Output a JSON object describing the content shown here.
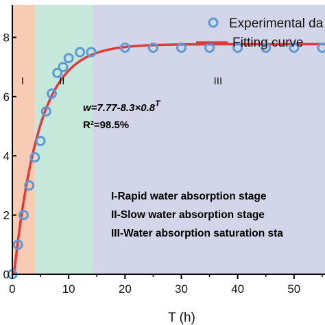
{
  "chart_data": {
    "type": "scatter",
    "xlabel": "T (h)",
    "ylabel": "",
    "xlim": [
      0,
      55.5
    ],
    "ylim": [
      0,
      9.1
    ],
    "x_ticks": [
      0,
      10,
      20,
      30,
      40,
      50
    ],
    "y_tick_labels": [
      {
        "value": 0,
        "label": "0"
      },
      {
        "value": 2,
        "label": "2"
      },
      {
        "value": 4,
        "label": "4"
      },
      {
        "value": 6,
        "label": "6"
      },
      {
        "value": 8,
        "label": "8"
      }
    ],
    "regions": [
      {
        "label": "I",
        "from": 0,
        "to": 4,
        "color": "#f8cbb4"
      },
      {
        "label": "II",
        "from": 4,
        "to": 14.3,
        "color": "#c5e8da"
      },
      {
        "label": "III",
        "from": 14.3,
        "to": 55.5,
        "color": "#d2d6e8"
      }
    ],
    "series": [
      {
        "name": "Experimental da",
        "kind": "scatter",
        "color": "#5b9bd5",
        "x": [
          0,
          1,
          2,
          3,
          4,
          5,
          6,
          7,
          8,
          9,
          10,
          12,
          14,
          20,
          25,
          30,
          35,
          40,
          45,
          50,
          55
        ],
        "y": [
          0.0,
          1.0,
          2.0,
          3.0,
          3.95,
          4.5,
          5.5,
          6.1,
          6.8,
          7.0,
          7.3,
          7.5,
          7.5,
          7.65,
          7.65,
          7.65,
          7.65,
          7.65,
          7.65,
          7.65,
          7.65
        ]
      },
      {
        "name": "Fitting curve",
        "kind": "line",
        "color": "#e03a3e",
        "formula": "w=7.77-8.3×0.8^T"
      }
    ],
    "annotations": {
      "equation_main": "w=7.77-8.3×0.8",
      "equation_exp": "T",
      "r2": "R²=98.5%",
      "notes": [
        "I-Rapid water absorption stage",
        "II-Slow water absorption stage",
        "III-Water absorption saturation sta"
      ]
    }
  }
}
